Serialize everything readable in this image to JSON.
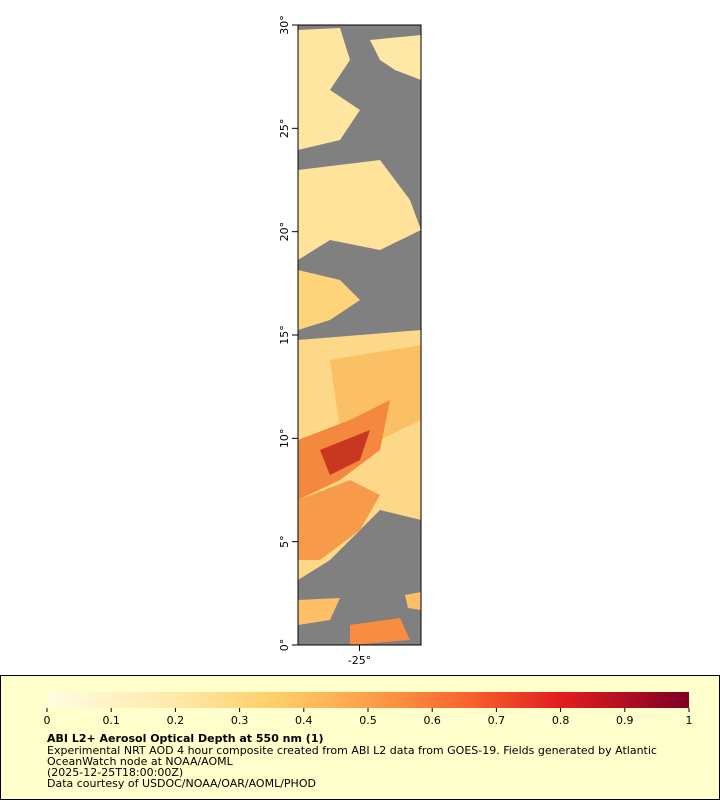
{
  "map": {
    "lat_range": [
      0,
      30
    ],
    "lon_range": [
      -28,
      -22
    ],
    "lat_ticks": [
      {
        "value": 0,
        "label": "0°"
      },
      {
        "value": 5,
        "label": "5°"
      },
      {
        "value": 10,
        "label": "10°"
      },
      {
        "value": 15,
        "label": "15°"
      },
      {
        "value": 20,
        "label": "20°"
      },
      {
        "value": 25,
        "label": "25°"
      },
      {
        "value": 30,
        "label": "30°"
      }
    ],
    "lon_ticks": [
      {
        "value": -25,
        "label": "-25°"
      }
    ]
  },
  "colorbar": {
    "range": [
      0,
      1
    ],
    "ticks": [
      0,
      0.1,
      0.2,
      0.3,
      0.4,
      0.5,
      0.6,
      0.7,
      0.8,
      0.9,
      1
    ]
  },
  "legend": {
    "title": "ABI L2+ Aerosol Optical Depth at 550 nm (1)",
    "lines": [
      "Experimental NRT AOD 4 hour composite created from ABI L2 data from GOES-19. Fields generated by Atlantic",
      "OceanWatch node at NOAA/AOML",
      "(2025-12-25T18:00:00Z)",
      "Data courtesy of USDOC/NOAA/OAR/AOML/PHOD"
    ]
  }
}
